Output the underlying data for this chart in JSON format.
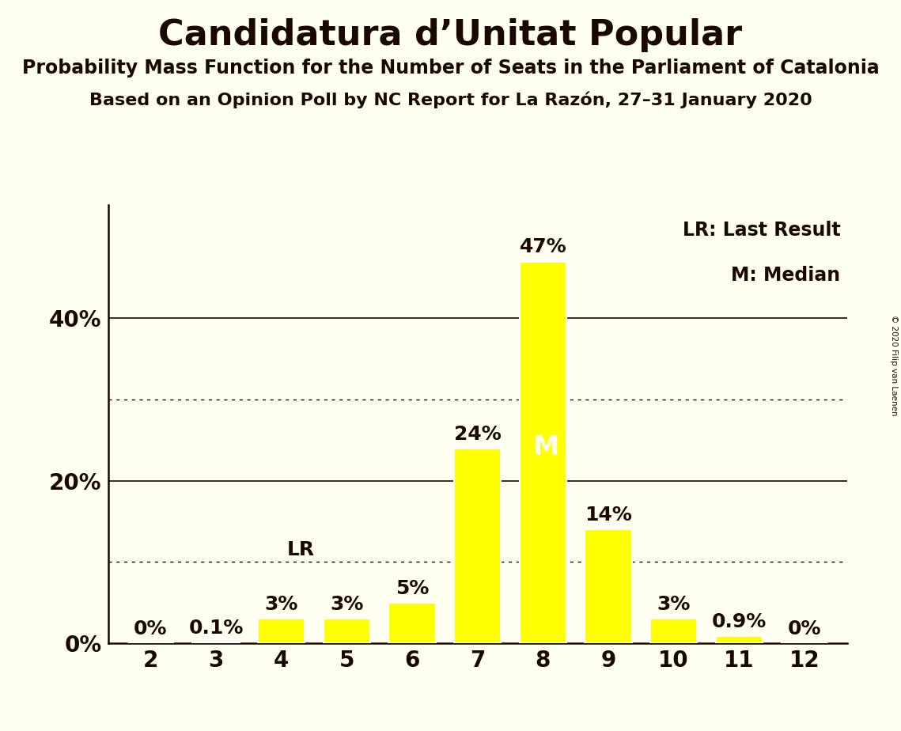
{
  "title": "Candidatura d’Unitat Popular",
  "subtitle1": "Probability Mass Function for the Number of Seats in the Parliament of Catalonia",
  "subtitle2": "Based on an Opinion Poll by NC Report for La Razón, 27–31 January 2020",
  "copyright": "© 2020 Filip van Laenen",
  "seats": [
    2,
    3,
    4,
    5,
    6,
    7,
    8,
    9,
    10,
    11,
    12
  ],
  "probabilities": [
    0.0,
    0.1,
    3.0,
    3.0,
    5.0,
    24.0,
    47.0,
    14.0,
    3.0,
    0.9,
    0.0
  ],
  "labels": [
    "0%",
    "0.1%",
    "3%",
    "3%",
    "5%",
    "24%",
    "47%",
    "14%",
    "3%",
    "0.9%",
    "0%"
  ],
  "bar_color": "#FFFF00",
  "bar_edge_color": "#FFFFFF",
  "background_color": "#FFFFF2",
  "text_color": "#1a0800",
  "median_seat": 8,
  "lr_seat": 4,
  "ylabel_ticks": [
    0,
    20,
    40
  ],
  "solid_lines": [
    20,
    40
  ],
  "dotted_lines": [
    10,
    30
  ],
  "ylim": [
    0,
    54
  ],
  "xlim_min": 1.35,
  "xlim_max": 12.65,
  "legend_lr": "LR: Last Result",
  "legend_m": "M: Median",
  "bar_width": 0.72,
  "title_fontsize": 32,
  "subtitle1_fontsize": 17,
  "subtitle2_fontsize": 16,
  "tick_label_fontsize": 20,
  "bar_label_fontsize": 18,
  "legend_fontsize": 17,
  "lr_fontsize": 18,
  "m_fontsize": 24
}
